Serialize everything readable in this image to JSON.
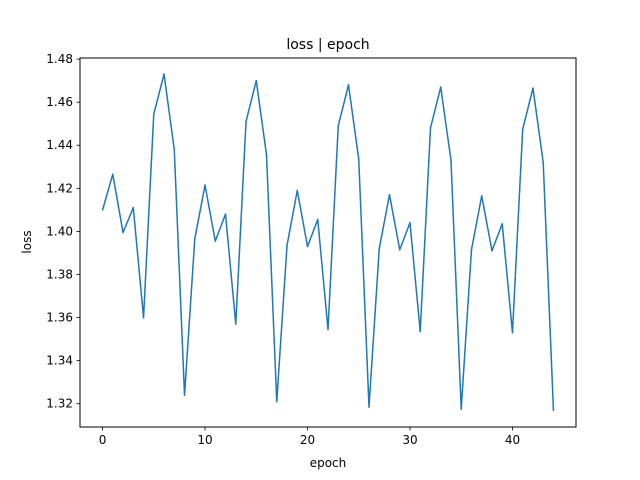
{
  "chart_data": {
    "type": "line",
    "title": "loss | epoch",
    "xlabel": "epoch",
    "ylabel": "loss",
    "xlim": [
      -2.2,
      46.2
    ],
    "ylim": [
      1.3092,
      1.4805
    ],
    "x_ticks": [
      0,
      10,
      20,
      30,
      40
    ],
    "y_ticks": [
      1.32,
      1.34,
      1.36,
      1.38,
      1.4,
      1.42,
      1.44,
      1.46,
      1.48
    ],
    "y_tick_labels": [
      "1.32",
      "1.34",
      "1.36",
      "1.38",
      "1.40",
      "1.42",
      "1.44",
      "1.46",
      "1.48"
    ],
    "grid": false,
    "line_color": "#1f77b4",
    "series": [
      {
        "x": [
          0,
          1,
          2,
          3,
          4,
          5,
          6,
          7,
          8,
          9,
          10,
          11,
          12,
          13,
          14,
          15,
          16,
          17,
          18,
          19,
          20,
          21,
          22,
          23,
          24,
          25,
          26,
          27,
          28,
          29,
          30,
          31,
          32,
          33,
          34,
          35,
          36,
          37,
          38,
          39,
          40,
          41,
          42,
          43,
          44
        ],
        "values": [
          1.41,
          1.4265,
          1.3995,
          1.411,
          1.36,
          1.4545,
          1.473,
          1.438,
          1.324,
          1.3965,
          1.4215,
          1.3955,
          1.408,
          1.357,
          1.451,
          1.47,
          1.4355,
          1.321,
          1.3935,
          1.419,
          1.393,
          1.4055,
          1.3545,
          1.449,
          1.468,
          1.4335,
          1.3185,
          1.392,
          1.417,
          1.3915,
          1.404,
          1.3535,
          1.448,
          1.467,
          1.433,
          1.3175,
          1.3915,
          1.4165,
          1.391,
          1.4035,
          1.353,
          1.4475,
          1.4665,
          1.432,
          1.317
        ]
      }
    ]
  }
}
